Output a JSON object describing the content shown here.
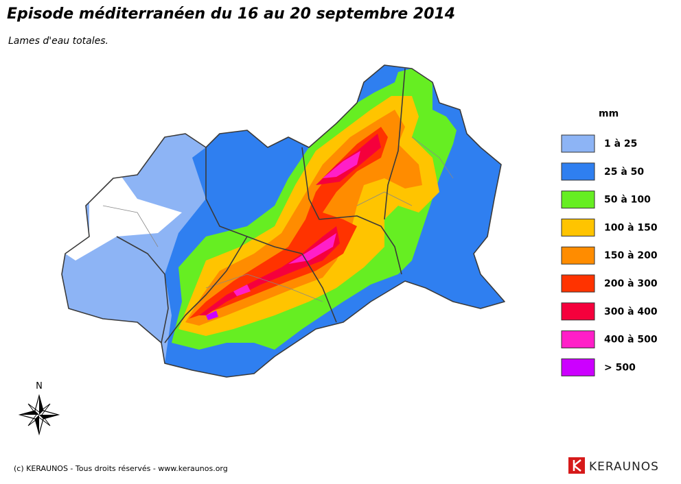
{
  "header": {
    "title": "Episode méditerranéen du 16 au 20 septembre 2014",
    "subtitle": "Lames d'eau totales."
  },
  "legend": {
    "unit": "mm",
    "items": [
      {
        "label": "1 à 25",
        "color": "#8db4f5"
      },
      {
        "label": "25 à 50",
        "color": "#2f7ff0"
      },
      {
        "label": "50 à 100",
        "color": "#66ee22"
      },
      {
        "label": "100 à 150",
        "color": "#ffc400"
      },
      {
        "label": "150 à 200",
        "color": "#ff8c00"
      },
      {
        "label": "200 à 300",
        "color": "#ff3300"
      },
      {
        "label": "300 à 400",
        "color": "#f5003c"
      },
      {
        "label": "400 à 500",
        "color": "#ff1fc8"
      },
      {
        "label": "> 500",
        "color": "#cc00ff"
      }
    ]
  },
  "compass": {
    "north": "N"
  },
  "footer": {
    "copyright": "(c) KERAUNOS - Tous droits réservés - www.keraunos.org",
    "logo": "KERAUNOS"
  }
}
